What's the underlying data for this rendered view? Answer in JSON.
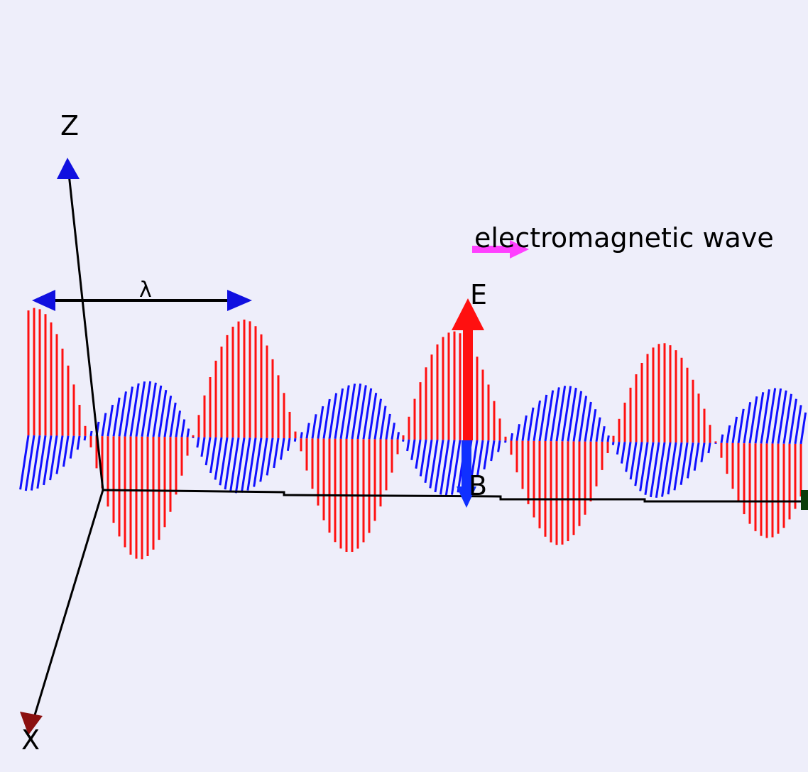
{
  "labels": {
    "z_axis": "Z",
    "x_axis": "X",
    "wavelength": "λ",
    "e_field": "E",
    "b_field": "B",
    "caption": "electromagnetic wave"
  }
}
